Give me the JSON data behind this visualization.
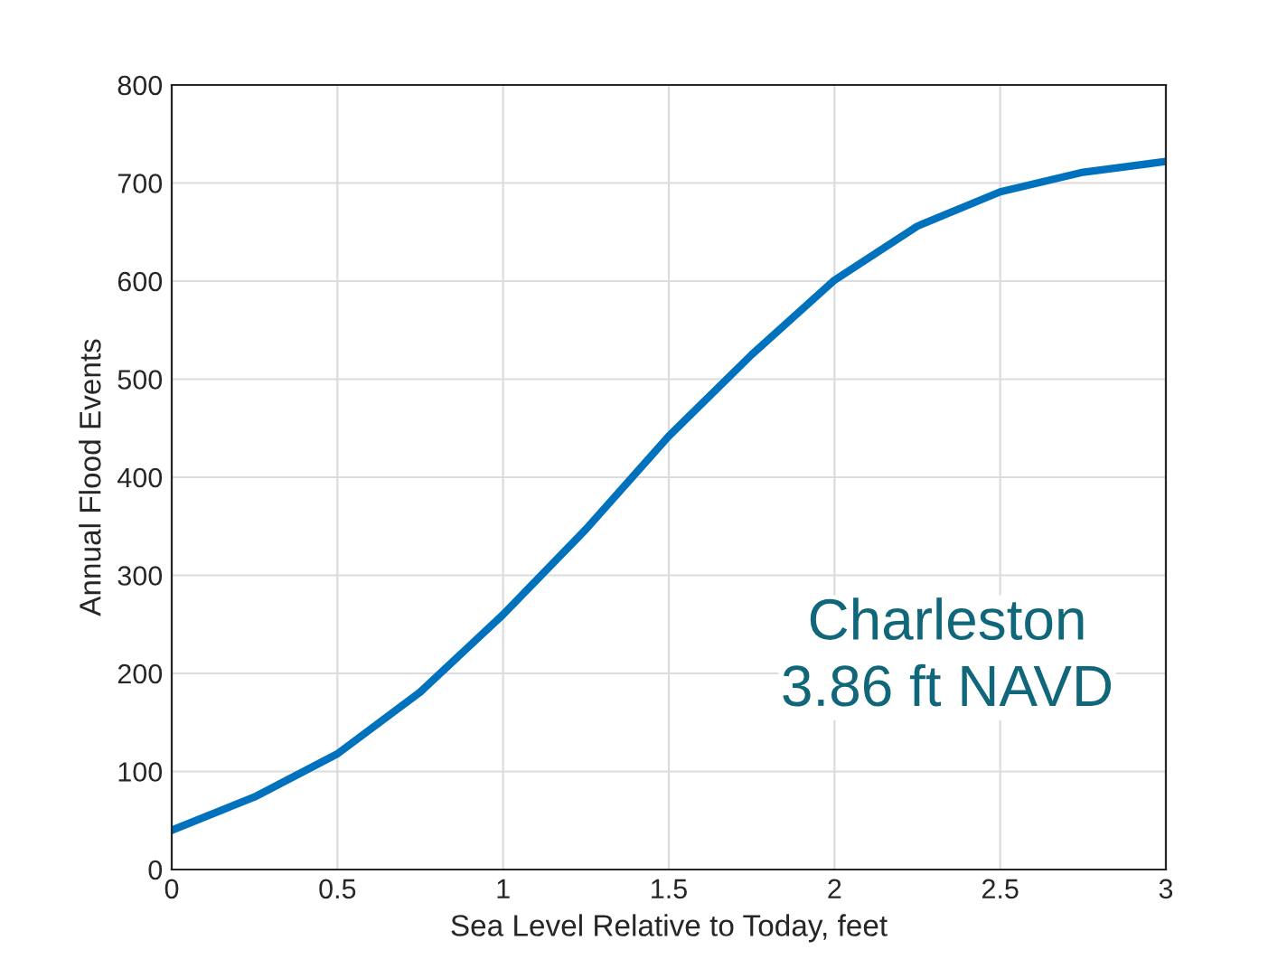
{
  "chart_data": {
    "type": "line",
    "xlabel": "Sea Level Relative to Today, feet",
    "ylabel": "Annual Flood Events",
    "x": [
      0,
      0.25,
      0.5,
      0.75,
      1,
      1.25,
      1.5,
      1.75,
      2,
      2.25,
      2.5,
      2.75,
      3
    ],
    "series": [
      {
        "color": "#0072bd",
        "values": [
          40,
          74,
          118,
          181,
          260,
          347,
          442,
          525,
          601,
          656,
          691,
          711,
          722
        ]
      }
    ],
    "xlim": [
      0,
      3
    ],
    "xticks": [
      0,
      0.5,
      1,
      1.5,
      2,
      2.5,
      3
    ],
    "ylim": [
      0,
      800
    ],
    "yticks": [
      0,
      100,
      200,
      300,
      400,
      500,
      600,
      700,
      800
    ],
    "grid": true,
    "annotations": [
      "Charleston\n3.86 ft NAVD"
    ]
  }
}
